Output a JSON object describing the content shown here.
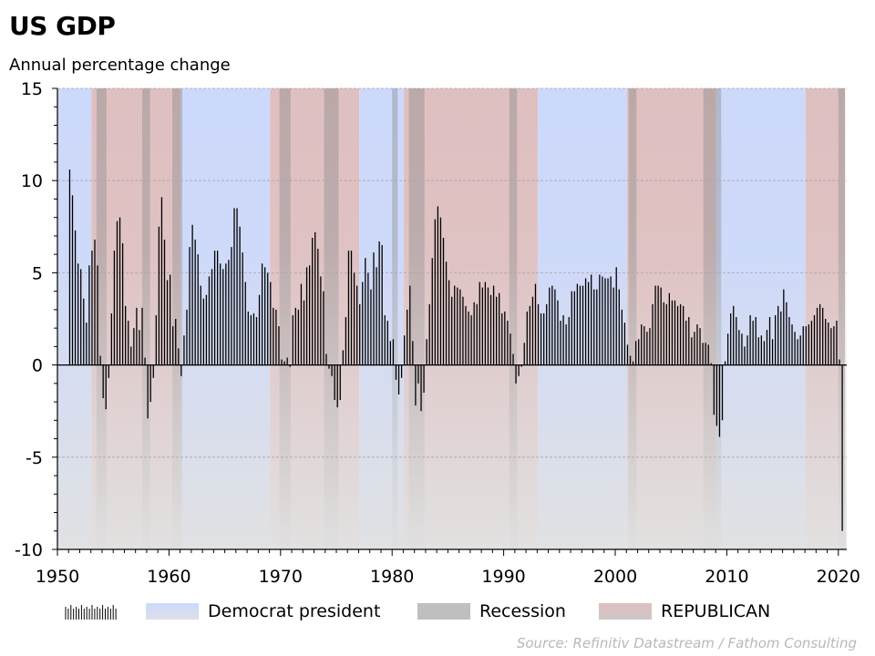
{
  "chart_data": {
    "type": "bar",
    "title": "US GDP",
    "subtitle": "Annual percentage change",
    "xlabel": "",
    "ylabel": "Annual percentage change",
    "frequency": "quarterly",
    "start_year": 1951.0,
    "xlim": [
      1950,
      2020.6
    ],
    "ylim": [
      -10,
      15
    ],
    "y_major_ticks": [
      15,
      10,
      5,
      0,
      -5,
      -10
    ],
    "y_tick_labels": [
      "15",
      "10",
      "5",
      "0",
      "-5",
      "-10"
    ],
    "x_ticks": [
      1950,
      1960,
      1970,
      1980,
      1990,
      2000,
      2010,
      2020
    ],
    "x_tick_labels": [
      "1950",
      "1960",
      "1970",
      "1980",
      "1990",
      "2000",
      "2010",
      "2020"
    ],
    "grid": "horizontal dashed at major y ticks",
    "values": [
      10.6,
      9.2,
      7.3,
      5.5,
      5.2,
      3.6,
      2.3,
      5.4,
      6.2,
      6.8,
      5.4,
      0.5,
      -1.8,
      -2.4,
      -0.7,
      2.8,
      6.2,
      7.8,
      8.0,
      6.6,
      3.2,
      2.4,
      1.0,
      2.0,
      3.1,
      1.9,
      3.1,
      0.4,
      -2.9,
      -2.0,
      -0.7,
      2.7,
      7.5,
      9.1,
      6.8,
      4.6,
      4.9,
      2.1,
      2.5,
      0.9,
      -0.6,
      1.6,
      3.0,
      6.4,
      7.6,
      6.8,
      6.0,
      4.3,
      3.6,
      3.8,
      4.8,
      5.2,
      6.2,
      6.2,
      5.5,
      5.2,
      5.5,
      5.7,
      6.4,
      8.5,
      8.5,
      7.5,
      6.1,
      4.5,
      2.9,
      2.7,
      2.8,
      2.6,
      3.8,
      5.5,
      5.3,
      5.0,
      4.5,
      3.1,
      3.0,
      2.1,
      0.3,
      0.2,
      0.4,
      -0.1,
      2.7,
      3.1,
      3.0,
      4.4,
      3.5,
      5.3,
      5.4,
      6.9,
      7.2,
      6.3,
      4.8,
      4.0,
      0.6,
      -0.2,
      -0.6,
      -1.9,
      -2.3,
      -1.9,
      0.8,
      2.6,
      6.2,
      6.2,
      5.0,
      4.3,
      3.3,
      4.5,
      5.8,
      5.0,
      4.1,
      6.1,
      5.3,
      6.7,
      6.5,
      2.7,
      2.4,
      1.3,
      1.4,
      -0.8,
      -1.6,
      -0.7,
      1.6,
      3.0,
      4.3,
      1.3,
      -2.2,
      -1.0,
      -2.5,
      -1.5,
      1.4,
      3.3,
      5.8,
      7.9,
      8.6,
      8.0,
      6.9,
      5.6,
      4.6,
      3.7,
      4.3,
      4.2,
      4.1,
      3.7,
      3.2,
      2.9,
      2.7,
      3.4,
      3.3,
      4.5,
      4.2,
      4.5,
      4.2,
      3.8,
      4.3,
      3.7,
      3.9,
      2.8,
      2.9,
      2.4,
      1.7,
      0.6,
      -1.0,
      -0.6,
      -0.1,
      1.2,
      2.9,
      3.2,
      3.7,
      4.4,
      3.3,
      2.8,
      2.8,
      3.3,
      4.2,
      4.3,
      4.1,
      3.5,
      2.4,
      2.7,
      2.2,
      2.6,
      4.0,
      4.0,
      4.4,
      4.3,
      4.3,
      4.7,
      4.5,
      4.9,
      4.1,
      4.1,
      4.9,
      4.8,
      4.7,
      4.7,
      4.8,
      4.2,
      5.3,
      4.1,
      3.0,
      2.3,
      1.1,
      0.5,
      0.2,
      1.3,
      1.4,
      2.2,
      2.1,
      1.8,
      2.0,
      3.3,
      4.3,
      4.3,
      4.2,
      3.4,
      3.3,
      3.9,
      3.5,
      3.5,
      3.2,
      3.3,
      3.2,
      2.4,
      2.6,
      1.5,
      1.8,
      2.2,
      2.0,
      1.2,
      1.2,
      1.1,
      0.1,
      -2.7,
      -3.3,
      -3.9,
      -3.0,
      0.2,
      1.7,
      2.8,
      3.2,
      2.6,
      1.9,
      1.7,
      1.0,
      1.6,
      2.7,
      2.4,
      2.6,
      1.5,
      1.6,
      1.3,
      1.9,
      2.6,
      1.4,
      2.7,
      3.2,
      2.9,
      4.1,
      3.4,
      2.6,
      2.2,
      1.8,
      1.4,
      1.6,
      2.1,
      2.1,
      2.2,
      2.4,
      2.7,
      3.1,
      3.3,
      3.1,
      2.5,
      2.3,
      2.0,
      2.1,
      2.4,
      0.3,
      -9.0
    ],
    "presidency_bands": [
      {
        "party": "Democrat",
        "start": 1950.0,
        "end": 1953.05
      },
      {
        "party": "Republican",
        "start": 1953.05,
        "end": 1961.05
      },
      {
        "party": "Democrat",
        "start": 1961.05,
        "end": 1969.05
      },
      {
        "party": "Republican",
        "start": 1969.05,
        "end": 1977.05
      },
      {
        "party": "Democrat",
        "start": 1977.05,
        "end": 1981.05
      },
      {
        "party": "Republican",
        "start": 1981.05,
        "end": 1993.05
      },
      {
        "party": "Democrat",
        "start": 1993.05,
        "end": 2001.05
      },
      {
        "party": "Republican",
        "start": 2001.05,
        "end": 2009.05
      },
      {
        "party": "Democrat",
        "start": 2009.05,
        "end": 2017.05
      },
      {
        "party": "Republican",
        "start": 2017.05,
        "end": 2020.6
      }
    ],
    "recessions": [
      {
        "start": 1953.5,
        "end": 1954.4
      },
      {
        "start": 1957.6,
        "end": 1958.3
      },
      {
        "start": 1960.3,
        "end": 1961.2
      },
      {
        "start": 1969.9,
        "end": 1970.9
      },
      {
        "start": 1973.9,
        "end": 1975.2
      },
      {
        "start": 1980.0,
        "end": 1980.5
      },
      {
        "start": 1981.5,
        "end": 1982.9
      },
      {
        "start": 1990.5,
        "end": 1991.2
      },
      {
        "start": 2001.2,
        "end": 2001.9
      },
      {
        "start": 2007.9,
        "end": 2009.5
      },
      {
        "start": 2020.0,
        "end": 2020.6
      }
    ],
    "legend": {
      "placement": "bottom",
      "entries": [
        {
          "key": "gdp",
          "label": ""
        },
        {
          "key": "democrat",
          "label": "Democrat president"
        },
        {
          "key": "recession",
          "label": "Recession"
        },
        {
          "key": "republican",
          "label": "REPUBLICAN"
        }
      ]
    },
    "colors": {
      "democrat": "#cdd9fb",
      "republican": "#dfc0c1",
      "recession": "#8a8a8a",
      "bar": "#000000",
      "fade_bottom": "#e0e0e0"
    }
  },
  "source": "Source: Refinitiv Datastream / Fathom Consulting"
}
